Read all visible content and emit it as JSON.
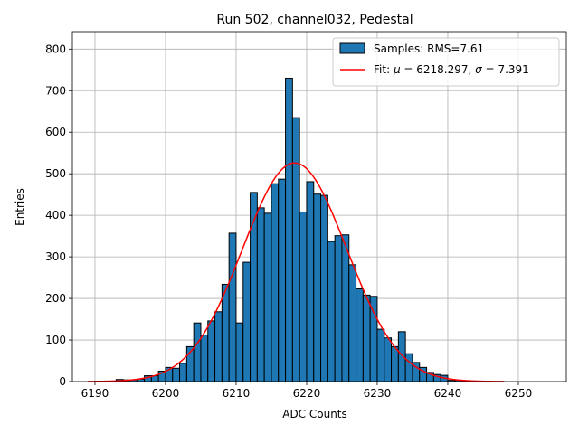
{
  "chart_data": {
    "type": "bar",
    "title": "Run 502, channel032, Pedestal",
    "xlabel": "ADC Counts",
    "ylabel": "Entries",
    "xlim": [
      6186.8,
      6256.8
    ],
    "ylim": [
      0,
      842
    ],
    "xticks": [
      6190,
      6200,
      6210,
      6220,
      6230,
      6240,
      6250
    ],
    "yticks": [
      0,
      100,
      200,
      300,
      400,
      500,
      600,
      700,
      800
    ],
    "grid": true,
    "legend_position": "top-right",
    "bin_width": 1,
    "bins": [
      {
        "x": 6189,
        "y": 0
      },
      {
        "x": 6190,
        "y": 1
      },
      {
        "x": 6191,
        "y": 1
      },
      {
        "x": 6192,
        "y": 1
      },
      {
        "x": 6193,
        "y": 5
      },
      {
        "x": 6194,
        "y": 4
      },
      {
        "x": 6195,
        "y": 4
      },
      {
        "x": 6196,
        "y": 6
      },
      {
        "x": 6197,
        "y": 14
      },
      {
        "x": 6198,
        "y": 14
      },
      {
        "x": 6199,
        "y": 25
      },
      {
        "x": 6200,
        "y": 34
      },
      {
        "x": 6201,
        "y": 32
      },
      {
        "x": 6202,
        "y": 44
      },
      {
        "x": 6203,
        "y": 84
      },
      {
        "x": 6204,
        "y": 141
      },
      {
        "x": 6205,
        "y": 112
      },
      {
        "x": 6206,
        "y": 146
      },
      {
        "x": 6207,
        "y": 168
      },
      {
        "x": 6208,
        "y": 234
      },
      {
        "x": 6209,
        "y": 357
      },
      {
        "x": 6210,
        "y": 141
      },
      {
        "x": 6211,
        "y": 287
      },
      {
        "x": 6212,
        "y": 455
      },
      {
        "x": 6213,
        "y": 418
      },
      {
        "x": 6214,
        "y": 405
      },
      {
        "x": 6215,
        "y": 476
      },
      {
        "x": 6216,
        "y": 487
      },
      {
        "x": 6217,
        "y": 730
      },
      {
        "x": 6218,
        "y": 635
      },
      {
        "x": 6219,
        "y": 408
      },
      {
        "x": 6220,
        "y": 481
      },
      {
        "x": 6221,
        "y": 451
      },
      {
        "x": 6222,
        "y": 448
      },
      {
        "x": 6223,
        "y": 337
      },
      {
        "x": 6224,
        "y": 351
      },
      {
        "x": 6225,
        "y": 353
      },
      {
        "x": 6226,
        "y": 281
      },
      {
        "x": 6227,
        "y": 223
      },
      {
        "x": 6228,
        "y": 208
      },
      {
        "x": 6229,
        "y": 205
      },
      {
        "x": 6230,
        "y": 126
      },
      {
        "x": 6231,
        "y": 105
      },
      {
        "x": 6232,
        "y": 84
      },
      {
        "x": 6233,
        "y": 120
      },
      {
        "x": 6234,
        "y": 67
      },
      {
        "x": 6235,
        "y": 46
      },
      {
        "x": 6236,
        "y": 34
      },
      {
        "x": 6237,
        "y": 22
      },
      {
        "x": 6238,
        "y": 17
      },
      {
        "x": 6239,
        "y": 15
      },
      {
        "x": 6240,
        "y": 3
      },
      {
        "x": 6241,
        "y": 3
      },
      {
        "x": 6242,
        "y": 1
      },
      {
        "x": 6243,
        "y": 1
      },
      {
        "x": 6244,
        "y": 0
      },
      {
        "x": 6245,
        "y": 0
      },
      {
        "x": 6246,
        "y": 0
      },
      {
        "x": 6247,
        "y": 0
      }
    ],
    "fit": {
      "model": "gaussian",
      "mu": 6218.297,
      "sigma": 7.391,
      "amplitude": 526,
      "x_range": [
        6189,
        6248
      ]
    },
    "legend": {
      "samples_label": "Samples: RMS=7.61",
      "fit_label_prefix": "Fit: ",
      "fit_mu_symbol": "μ",
      "fit_mu_text": " = 6218.297, ",
      "fit_sigma_symbol": "σ",
      "fit_sigma_text": " = 7.391"
    },
    "colors": {
      "bar_fill": "#1f77b4",
      "bar_edge": "#000000",
      "fit_line": "#ff0000",
      "grid": "#b0b0b0"
    }
  }
}
